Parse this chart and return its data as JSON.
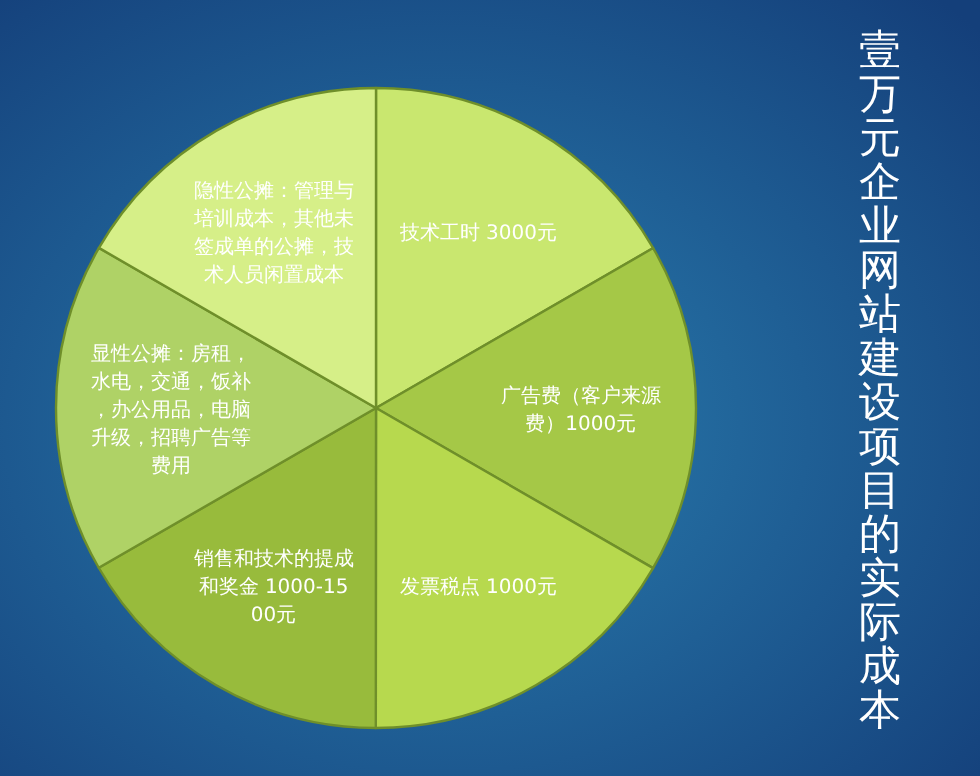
{
  "chart_data": {
    "type": "pie",
    "title": "壹万元企业网站建设项目的实际成本",
    "categories": [
      "技术工时 3000元",
      "广告费（客户来源费）1000元",
      "发票税点 1000元",
      "销售和技术的提成和奖金 1000-1500元",
      "显性公摊：房租，水电，交通，饭补，办公用品，电脑升级，招聘广告等费用",
      "隐性公摊：管理与培训成本，其他未签成单的公摊，技术人员闲置成本"
    ],
    "values": [
      16.67,
      16.67,
      16.67,
      16.67,
      16.66,
      16.66
    ],
    "colors": [
      "#c9e76f",
      "#a5c847",
      "#b7d94e",
      "#98bb3c",
      "#afd266",
      "#d6ef88"
    ]
  }
}
